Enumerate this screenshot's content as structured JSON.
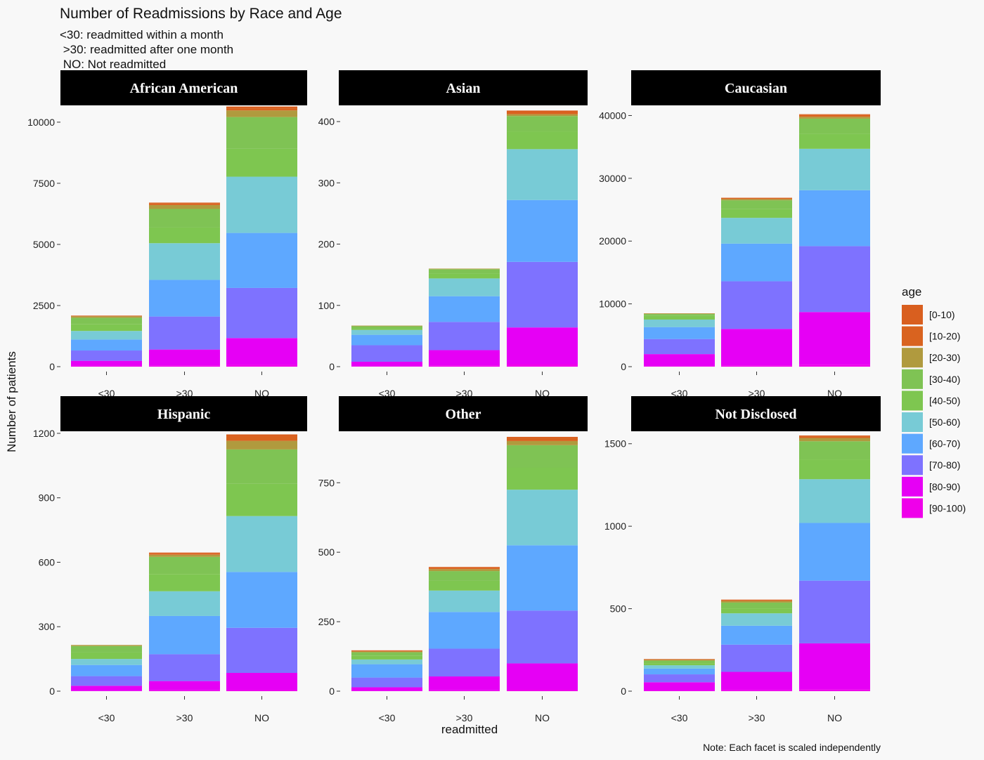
{
  "title": "Number of Readmissions by Race and Age",
  "subtitle_lines": [
    "<30: readmitted within a month",
    " >30: readmitted after one month",
    " NO: Not readmitted"
  ],
  "caption": "Note: Each facet is scaled independently",
  "chart_data": {
    "type": "bar",
    "stacked": true,
    "facet_scales": "free_y",
    "xlabel": "readmitted",
    "ylabel": "Number of patients",
    "categories": [
      "<30",
      ">30",
      "NO"
    ],
    "legend": {
      "title": "age",
      "position": "right",
      "items": [
        {
          "label": "[0-10)",
          "color": "#d95f1f"
        },
        {
          "label": "[10-20)",
          "color": "#d9631f"
        },
        {
          "label": "[20-30)",
          "color": "#b09a3e"
        },
        {
          "label": "[30-40)",
          "color": "#7fc354"
        },
        {
          "label": "[40-50)",
          "color": "#7ec650"
        },
        {
          "label": "[50-60)",
          "color": "#78cbd6"
        },
        {
          "label": "[60-70)",
          "color": "#5ea8ff"
        },
        {
          "label": "[70-80)",
          "color": "#7e72ff"
        },
        {
          "label": "[80-90)",
          "color": "#e600f5"
        },
        {
          "label": "[90-100)",
          "color": "#ef00ea"
        }
      ]
    },
    "stack_order_bottom_to_top": [
      "[90-100)",
      "[80-90)",
      "[70-80)",
      "[60-70)",
      "[50-60)",
      "[40-50)",
      "[30-40)",
      "[20-30)",
      "[10-20)",
      "[0-10)"
    ],
    "facets": [
      {
        "name": "African American",
        "ylim": [
          0,
          10400
        ],
        "yticks": [
          0,
          2500,
          5000,
          7500,
          10000
        ],
        "series": [
          {
            "name": "[0-10)",
            "values": [
              10,
              40,
              70
            ]
          },
          {
            "name": "[10-20)",
            "values": [
              20,
              60,
              90
            ]
          },
          {
            "name": "[20-30)",
            "values": [
              60,
              160,
              270
            ]
          },
          {
            "name": "[30-40)",
            "values": [
              270,
              760,
              1300
            ]
          },
          {
            "name": "[40-50)",
            "values": [
              270,
              640,
              1140
            ]
          },
          {
            "name": "[50-60)",
            "values": [
              350,
              1500,
              2300
            ]
          },
          {
            "name": "[60-70)",
            "values": [
              450,
              1500,
              2250
            ]
          },
          {
            "name": "[70-80)",
            "values": [
              420,
              1350,
              2050
            ]
          },
          {
            "name": "[80-90)",
            "values": [
              200,
              650,
              1100
            ]
          },
          {
            "name": "[90-100)",
            "values": [
              40,
              50,
              70
            ]
          }
        ]
      },
      {
        "name": "Asian",
        "ylim": [
          0,
          415
        ],
        "yticks": [
          0,
          100,
          200,
          300,
          400
        ],
        "series": [
          {
            "name": "[0-10)",
            "values": [
              0,
              0,
              3
            ]
          },
          {
            "name": "[10-20)",
            "values": [
              0,
              0,
              3
            ]
          },
          {
            "name": "[20-30)",
            "values": [
              1,
              1,
              3
            ]
          },
          {
            "name": "[30-40)",
            "values": [
              3,
              7,
              25
            ]
          },
          {
            "name": "[40-50)",
            "values": [
              3,
              8,
              29
            ]
          },
          {
            "name": "[50-60)",
            "values": [
              8,
              29,
              83
            ]
          },
          {
            "name": "[60-70)",
            "values": [
              17,
              42,
              101
            ]
          },
          {
            "name": "[70-80)",
            "values": [
              27,
              46,
              107
            ]
          },
          {
            "name": "[80-90)",
            "values": [
              7,
              25,
              60
            ]
          },
          {
            "name": "[90-100)",
            "values": [
              1,
              2,
              4
            ]
          }
        ]
      },
      {
        "name": "Caucasian",
        "ylim": [
          0,
          40500
        ],
        "yticks": [
          0,
          10000,
          20000,
          30000,
          40000
        ],
        "series": [
          {
            "name": "[0-10)",
            "values": [
              0,
              50,
              80
            ]
          },
          {
            "name": "[10-20)",
            "values": [
              20,
              150,
              330
            ]
          },
          {
            "name": "[20-30)",
            "values": [
              100,
              200,
              300
            ]
          },
          {
            "name": "[30-40)",
            "values": [
              300,
              1400,
              2400
            ]
          },
          {
            "name": "[40-50)",
            "values": [
              580,
              1400,
              2400
            ]
          },
          {
            "name": "[50-60)",
            "values": [
              1200,
              4100,
              6600
            ]
          },
          {
            "name": "[60-70)",
            "values": [
              1900,
              6000,
              8900
            ]
          },
          {
            "name": "[70-80)",
            "values": [
              2400,
              7600,
              10500
            ]
          },
          {
            "name": "[80-90)",
            "values": [
              1900,
              5800,
              8400
            ]
          },
          {
            "name": "[90-100)",
            "values": [
              100,
              200,
              300
            ]
          }
        ]
      },
      {
        "name": "Hispanic",
        "ylim": [
          0,
          1190
        ],
        "yticks": [
          0,
          300,
          600,
          900,
          1200
        ],
        "series": [
          {
            "name": "[0-10)",
            "values": [
              0,
              5,
              10
            ]
          },
          {
            "name": "[10-20)",
            "values": [
              0,
              5,
              20
            ]
          },
          {
            "name": "[20-30)",
            "values": [
              5,
              10,
              40
            ]
          },
          {
            "name": "[30-40)",
            "values": [
              30,
              80,
              160
            ]
          },
          {
            "name": "[40-50)",
            "values": [
              30,
              80,
              150
            ]
          },
          {
            "name": "[50-60)",
            "values": [
              28,
              115,
              260
            ]
          },
          {
            "name": "[60-70)",
            "values": [
              52,
              178,
              260
            ]
          },
          {
            "name": "[70-80)",
            "values": [
              45,
              125,
              210
            ]
          },
          {
            "name": "[80-90)",
            "values": [
              24,
              43,
              80
            ]
          },
          {
            "name": "[90-100)",
            "values": [
              1,
              4,
              5
            ]
          }
        ]
      },
      {
        "name": "Other",
        "ylim": [
          0,
          920
        ],
        "yticks": [
          0,
          250,
          500,
          750
        ],
        "series": [
          {
            "name": "[0-10)",
            "values": [
              2,
              3,
              5
            ]
          },
          {
            "name": "[10-20)",
            "values": [
              2,
              5,
              10
            ]
          },
          {
            "name": "[20-30)",
            "values": [
              3,
              7,
              15
            ]
          },
          {
            "name": "[30-40)",
            "values": [
              13,
              35,
              80
            ]
          },
          {
            "name": "[40-50)",
            "values": [
              13,
              35,
              80
            ]
          },
          {
            "name": "[50-60)",
            "values": [
              17,
              77,
              200
            ]
          },
          {
            "name": "[60-70)",
            "values": [
              48,
              132,
              235
            ]
          },
          {
            "name": "[70-80)",
            "values": [
              35,
              100,
              190
            ]
          },
          {
            "name": "[80-90)",
            "values": [
              13,
              50,
              95
            ]
          },
          {
            "name": "[90-100)",
            "values": [
              1,
              3,
              5
            ]
          }
        ]
      },
      {
        "name": "Not Disclosed",
        "ylim": [
          0,
          1550
        ],
        "yticks": [
          0,
          500,
          1000,
          1500
        ],
        "series": [
          {
            "name": "[0-10)",
            "values": [
              2,
              3,
              5
            ]
          },
          {
            "name": "[10-20)",
            "values": [
              3,
              5,
              10
            ]
          },
          {
            "name": "[20-30)",
            "values": [
              5,
              10,
              20
            ]
          },
          {
            "name": "[30-40)",
            "values": [
              15,
              35,
              110
            ]
          },
          {
            "name": "[40-50)",
            "values": [
              13,
              30,
              120
            ]
          },
          {
            "name": "[50-60)",
            "values": [
              20,
              75,
              265
            ]
          },
          {
            "name": "[60-70)",
            "values": [
              35,
              115,
              350
            ]
          },
          {
            "name": "[70-80)",
            "values": [
              48,
              165,
              380
            ]
          },
          {
            "name": "[80-90)",
            "values": [
              50,
              110,
              280
            ]
          },
          {
            "name": "[90-100)",
            "values": [
              4,
              7,
              10
            ]
          }
        ]
      }
    ]
  }
}
